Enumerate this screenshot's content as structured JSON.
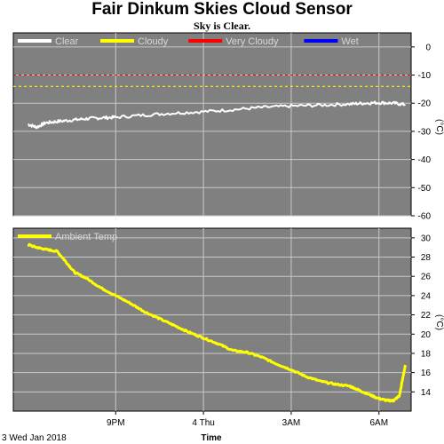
{
  "title": "Fair Dinkum Skies Cloud Sensor",
  "subtitle": "Sky is Clear.",
  "date_label": "3 Wed Jan 2018",
  "x_axis_title": "Time",
  "x_ticks": [
    "9PM",
    "4 Thu",
    "3AM",
    "6AM"
  ],
  "chart_data": [
    {
      "type": "line",
      "ylabel": "(°C)",
      "ylim": [
        -60,
        5
      ],
      "yticks": [
        0,
        -10,
        -20,
        -30,
        -40,
        -50,
        -60
      ],
      "grid": true,
      "legend_placement": "top",
      "legend": [
        {
          "label": "Clear",
          "color": "#ffffff"
        },
        {
          "label": "Cloudy",
          "color": "#ffff00"
        },
        {
          "label": "Very Cloudy",
          "color": "#ff0000"
        },
        {
          "label": "Wet",
          "color": "#0000ff"
        }
      ],
      "thresholds": [
        {
          "value": -10,
          "color": "#ff0000"
        },
        {
          "value": -14,
          "color": "#ffff00"
        }
      ],
      "series": [
        {
          "name": "Clear",
          "color": "#ffffff",
          "x_hours": [
            18.0,
            18.3,
            18.6,
            19.0,
            19.5,
            20.0,
            20.5,
            21.0,
            22.0,
            23.0,
            24.0,
            25.0,
            26.0,
            27.0,
            28.0,
            29.0,
            29.5,
            30.0,
            30.5,
            30.9
          ],
          "values": [
            -27.5,
            -28.5,
            -27.0,
            -26.5,
            -26.0,
            -25.5,
            -25.2,
            -25.0,
            -24.2,
            -23.5,
            -23.0,
            -22.3,
            -21.5,
            -21.0,
            -20.7,
            -20.3,
            -20.0,
            -19.8,
            -20.0,
            -20.5
          ]
        }
      ]
    },
    {
      "type": "line",
      "ylabel": "(°C)",
      "ylim": [
        12,
        31
      ],
      "yticks": [
        30,
        28,
        26,
        24,
        22,
        20,
        18,
        16,
        14
      ],
      "grid": true,
      "legend_placement": "top",
      "legend": [
        {
          "label": "Ambient Temp",
          "color": "#ffff00"
        }
      ],
      "series": [
        {
          "name": "Ambient Temp",
          "color": "#ffff00",
          "x_hours": [
            18.0,
            18.3,
            18.6,
            19.0,
            19.3,
            19.6,
            20.0,
            20.5,
            21.0,
            21.5,
            22.0,
            22.5,
            23.0,
            23.5,
            24.0,
            24.5,
            25.0,
            25.5,
            26.0,
            26.5,
            27.0,
            27.5,
            28.0,
            28.5,
            29.0,
            29.3,
            29.6,
            30.0,
            30.3,
            30.5,
            30.7,
            30.9
          ],
          "values": [
            29.3,
            29.0,
            28.8,
            28.6,
            27.5,
            26.4,
            25.8,
            24.8,
            24.0,
            23.2,
            22.3,
            21.6,
            20.9,
            20.2,
            19.6,
            19.0,
            18.3,
            18.1,
            17.6,
            16.9,
            16.3,
            15.6,
            15.1,
            14.8,
            14.6,
            14.2,
            13.8,
            13.3,
            13.1,
            13.1,
            13.6,
            16.8
          ]
        }
      ]
    }
  ]
}
